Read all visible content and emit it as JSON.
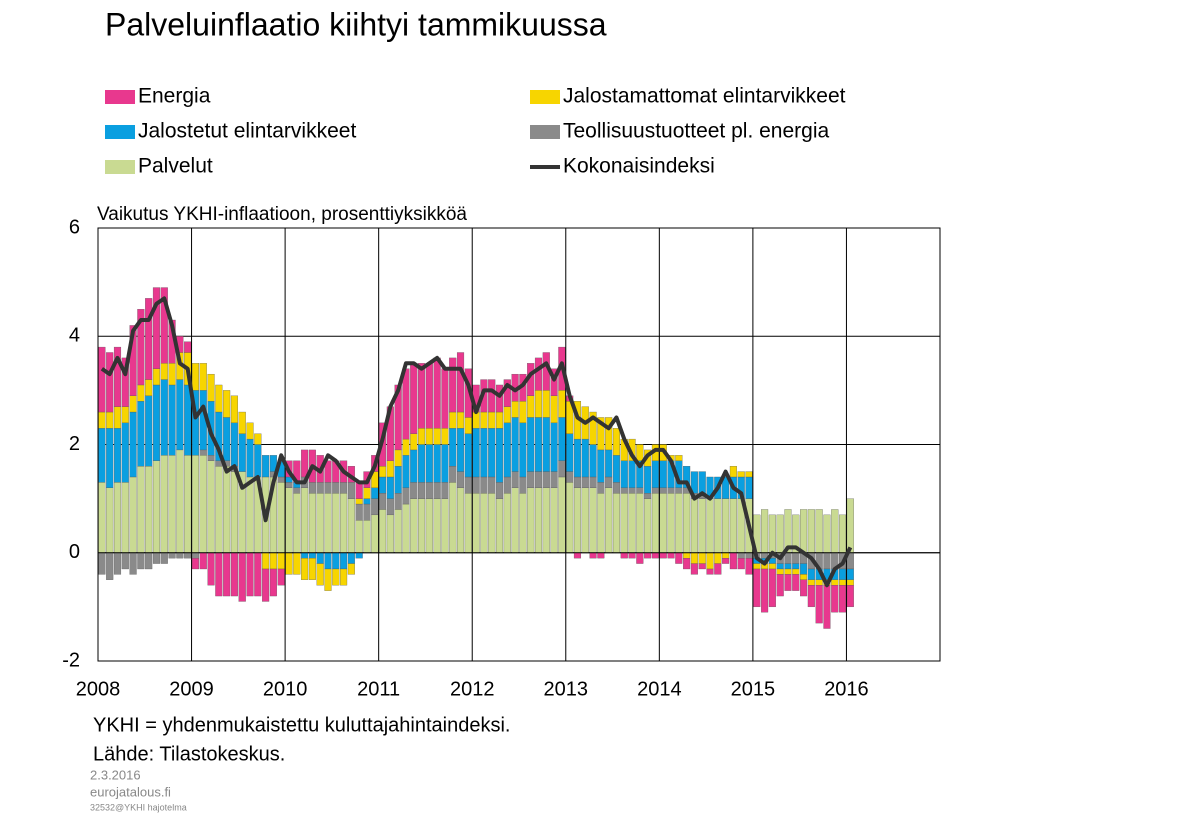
{
  "chart_data": {
    "type": "bar",
    "stacked": true,
    "title": "Palveluinflaatio kiihtyi tammikuussa",
    "y_label": "Vaikutus YKHI-inflaatioon, prosenttiyksikköä",
    "notes": [
      "YKHI = yhdenmukaistettu kuluttajahintaindeksi.",
      "Lähde: Tilastokeskus."
    ],
    "footer": [
      "2.3.2016",
      "eurojatalous.fi",
      "32532@YKHI hajotelma"
    ],
    "categories": [
      "2008",
      null,
      null,
      null,
      null,
      null,
      null,
      null,
      null,
      null,
      null,
      null,
      "2009",
      null,
      null,
      null,
      null,
      null,
      null,
      null,
      null,
      null,
      null,
      null,
      "2010",
      null,
      null,
      null,
      null,
      null,
      null,
      null,
      null,
      null,
      null,
      null,
      "2011",
      null,
      null,
      null,
      null,
      null,
      null,
      null,
      null,
      null,
      null,
      null,
      "2012",
      null,
      null,
      null,
      null,
      null,
      null,
      null,
      null,
      null,
      null,
      null,
      "2013",
      null,
      null,
      null,
      null,
      null,
      null,
      null,
      null,
      null,
      null,
      null,
      "2014",
      null,
      null,
      null,
      null,
      null,
      null,
      null,
      null,
      null,
      null,
      null,
      "2015",
      null,
      null,
      null,
      null,
      null,
      null,
      null,
      null,
      null,
      null,
      null,
      "2016",
      null,
      null,
      null,
      null,
      null,
      null,
      null,
      null,
      null,
      null,
      null
    ],
    "ylim": [
      -2,
      6
    ],
    "yticks": [
      -2,
      0,
      2,
      4,
      6
    ],
    "grid": true,
    "series": [
      {
        "name": "Energia",
        "color": "#e8388e",
        "values": [
          1.2,
          1.1,
          1.1,
          0.9,
          1.3,
          1.4,
          1.5,
          1.5,
          1.4,
          0.8,
          0.3,
          0.2,
          -0.2,
          -0.3,
          -0.6,
          -0.8,
          -0.8,
          -0.8,
          -0.9,
          -0.8,
          -0.8,
          -0.6,
          -0.5,
          -0.3,
          0.3,
          0.4,
          0.5,
          0.6,
          0.5,
          0.4,
          0.4,
          0.4,
          0.3,
          0.3,
          0.3,
          0.3,
          0.8,
          1.0,
          1.2,
          1.3,
          1.3,
          1.2,
          1.2,
          1.3,
          1.1,
          1.0,
          1.1,
          0.9,
          0.5,
          0.6,
          0.6,
          0.5,
          0.5,
          0.5,
          0.5,
          0.6,
          0.6,
          0.7,
          0.5,
          0.8,
          0.1,
          -0.1,
          0.0,
          -0.1,
          -0.1,
          0.0,
          0.0,
          -0.1,
          -0.1,
          -0.2,
          -0.1,
          -0.1,
          -0.1,
          -0.1,
          -0.2,
          -0.2,
          -0.2,
          -0.1,
          -0.1,
          -0.2,
          -0.1,
          -0.3,
          -0.2,
          -0.3,
          -0.7,
          -0.8,
          -0.7,
          -0.4,
          -0.3,
          -0.3,
          -0.3,
          -0.4,
          -0.7,
          -0.8,
          -0.5,
          -0.5,
          -0.4,
          null,
          null,
          null,
          null,
          null,
          null,
          null,
          null,
          null,
          null,
          null
        ]
      },
      {
        "name": "Jalostamattomat elintarvikkeet",
        "color": "#f7d500",
        "values": [
          0.3,
          0.3,
          0.4,
          0.3,
          0.3,
          0.3,
          0.3,
          0.3,
          0.3,
          0.4,
          0.5,
          0.6,
          0.5,
          0.5,
          0.5,
          0.5,
          0.5,
          0.5,
          0.4,
          0.3,
          0.2,
          -0.3,
          -0.3,
          -0.3,
          -0.4,
          -0.4,
          -0.4,
          -0.4,
          -0.4,
          -0.4,
          -0.3,
          -0.3,
          -0.2,
          0.1,
          0.2,
          0.3,
          0.2,
          0.3,
          0.3,
          0.3,
          0.3,
          0.3,
          0.3,
          0.3,
          0.3,
          0.3,
          0.3,
          0.3,
          0.3,
          0.3,
          0.3,
          0.3,
          0.3,
          0.3,
          0.4,
          0.4,
          0.5,
          0.5,
          0.5,
          0.5,
          0.6,
          0.7,
          0.6,
          0.6,
          0.6,
          0.6,
          0.5,
          0.4,
          0.4,
          0.3,
          0.3,
          0.3,
          0.3,
          0.1,
          0.1,
          -0.1,
          -0.2,
          -0.2,
          -0.3,
          -0.2,
          -0.1,
          0.2,
          0.1,
          0.1,
          -0.1,
          -0.1,
          -0.1,
          -0.1,
          -0.1,
          -0.1,
          -0.1,
          -0.1,
          -0.1,
          -0.1,
          -0.1,
          -0.1,
          -0.1,
          null,
          null,
          null,
          null,
          null,
          null,
          null,
          null,
          null,
          null,
          null
        ]
      },
      {
        "name": "Jalostetut elintarvikkeet",
        "color": "#0a9fe0",
        "values": [
          1.0,
          1.1,
          1.0,
          1.1,
          1.2,
          1.2,
          1.3,
          1.4,
          1.4,
          1.3,
          1.3,
          1.3,
          1.2,
          1.1,
          1.0,
          0.9,
          0.8,
          0.8,
          0.7,
          0.7,
          0.6,
          0.4,
          0.3,
          0.3,
          0.1,
          0.1,
          -0.1,
          -0.1,
          -0.2,
          -0.3,
          -0.3,
          -0.3,
          -0.2,
          -0.1,
          0.1,
          0.2,
          0.3,
          0.4,
          0.5,
          0.6,
          0.6,
          0.7,
          0.7,
          0.7,
          0.7,
          0.7,
          0.8,
          0.8,
          0.9,
          0.9,
          0.9,
          1.0,
          1.0,
          1.0,
          1.0,
          1.0,
          1.0,
          1.0,
          0.9,
          0.8,
          0.7,
          0.7,
          0.7,
          0.6,
          0.6,
          0.5,
          0.5,
          0.5,
          0.5,
          0.5,
          0.5,
          0.5,
          0.5,
          0.5,
          0.5,
          0.4,
          0.4,
          0.4,
          0.4,
          0.4,
          0.4,
          0.4,
          0.4,
          0.4,
          -0.1,
          -0.1,
          -0.1,
          -0.1,
          -0.1,
          -0.1,
          -0.2,
          -0.2,
          -0.2,
          -0.2,
          -0.2,
          -0.2,
          -0.2,
          null,
          null,
          null,
          null,
          null,
          null,
          null,
          null,
          null,
          null,
          null
        ]
      },
      {
        "name": "Teollisuustuotteet pl. energia",
        "color": "#8a8a8a",
        "values": [
          -0.4,
          -0.5,
          -0.4,
          -0.3,
          -0.4,
          -0.3,
          -0.3,
          -0.2,
          -0.2,
          -0.1,
          -0.1,
          -0.1,
          -0.1,
          0.1,
          0.1,
          0.1,
          0.1,
          0.1,
          0.0,
          0.0,
          0.0,
          0.0,
          0.1,
          0.1,
          0.1,
          0.1,
          0.2,
          0.2,
          0.2,
          0.2,
          0.2,
          0.2,
          0.3,
          0.3,
          0.3,
          0.3,
          0.3,
          0.3,
          0.3,
          0.3,
          0.3,
          0.3,
          0.3,
          0.3,
          0.3,
          0.3,
          0.3,
          0.3,
          0.3,
          0.3,
          0.3,
          0.3,
          0.3,
          0.3,
          0.3,
          0.3,
          0.3,
          0.3,
          0.3,
          0.3,
          0.2,
          0.2,
          0.2,
          0.2,
          0.2,
          0.2,
          0.2,
          0.1,
          0.1,
          0.1,
          0.1,
          0.1,
          0.1,
          0.1,
          0.1,
          0.1,
          0.1,
          0.1,
          0.0,
          0.0,
          0.0,
          0.0,
          -0.1,
          -0.1,
          -0.1,
          -0.1,
          -0.1,
          -0.2,
          -0.2,
          -0.2,
          -0.2,
          -0.3,
          -0.3,
          -0.3,
          -0.3,
          -0.3,
          -0.3,
          null,
          null,
          null,
          null,
          null,
          null,
          null,
          null,
          null,
          null,
          null
        ]
      },
      {
        "name": "Palvelut",
        "color": "#c9da92",
        "values": [
          1.3,
          1.2,
          1.3,
          1.3,
          1.4,
          1.6,
          1.6,
          1.7,
          1.8,
          1.8,
          1.9,
          1.8,
          1.8,
          1.8,
          1.7,
          1.6,
          1.6,
          1.5,
          1.5,
          1.4,
          1.4,
          1.4,
          1.4,
          1.3,
          1.2,
          1.1,
          1.2,
          1.1,
          1.1,
          1.1,
          1.1,
          1.1,
          1.0,
          0.6,
          0.6,
          0.7,
          0.8,
          0.7,
          0.8,
          0.9,
          1.0,
          1.0,
          1.0,
          1.0,
          1.0,
          1.3,
          1.2,
          1.1,
          1.1,
          1.1,
          1.1,
          1.0,
          1.1,
          1.2,
          1.1,
          1.2,
          1.2,
          1.2,
          1.2,
          1.4,
          1.3,
          1.2,
          1.2,
          1.2,
          1.1,
          1.2,
          1.1,
          1.1,
          1.1,
          1.1,
          1.0,
          1.1,
          1.1,
          1.1,
          1.1,
          1.1,
          1.0,
          1.0,
          1.0,
          1.0,
          1.0,
          1.0,
          1.0,
          1.0,
          0.7,
          0.8,
          0.7,
          0.7,
          0.8,
          0.7,
          0.8,
          0.8,
          0.8,
          0.7,
          0.8,
          0.7,
          1.0,
          null,
          null,
          null,
          null,
          null,
          null,
          null,
          null,
          null,
          null,
          null
        ]
      },
      {
        "name": "Kokonaisindeksi",
        "type": "line",
        "color": "#333333",
        "values": [
          3.4,
          3.3,
          3.6,
          3.3,
          4.1,
          4.3,
          4.3,
          4.6,
          4.7,
          4.2,
          3.5,
          3.4,
          2.5,
          2.7,
          2.2,
          1.9,
          1.5,
          1.6,
          1.2,
          1.3,
          1.4,
          0.6,
          1.3,
          1.8,
          1.5,
          1.3,
          1.3,
          1.6,
          1.5,
          1.8,
          1.7,
          1.5,
          1.4,
          1.3,
          1.3,
          1.6,
          2.1,
          2.7,
          3.0,
          3.5,
          3.5,
          3.4,
          3.5,
          3.6,
          3.4,
          3.4,
          3.4,
          3.1,
          2.6,
          3.0,
          3.0,
          2.9,
          3.1,
          3.0,
          3.1,
          3.3,
          3.4,
          3.5,
          3.2,
          3.5,
          2.9,
          2.5,
          2.4,
          2.5,
          2.4,
          2.3,
          2.5,
          2.1,
          1.8,
          1.6,
          1.8,
          1.9,
          1.9,
          1.7,
          1.3,
          1.3,
          1.0,
          1.1,
          1.0,
          1.2,
          1.5,
          1.2,
          1.1,
          0.5,
          -0.1,
          -0.2,
          0.0,
          -0.1,
          0.1,
          0.1,
          0.0,
          -0.1,
          -0.3,
          -0.6,
          -0.3,
          -0.2,
          0.1,
          null,
          null,
          null,
          null,
          null,
          null,
          null,
          null,
          null,
          null,
          null
        ]
      }
    ]
  }
}
